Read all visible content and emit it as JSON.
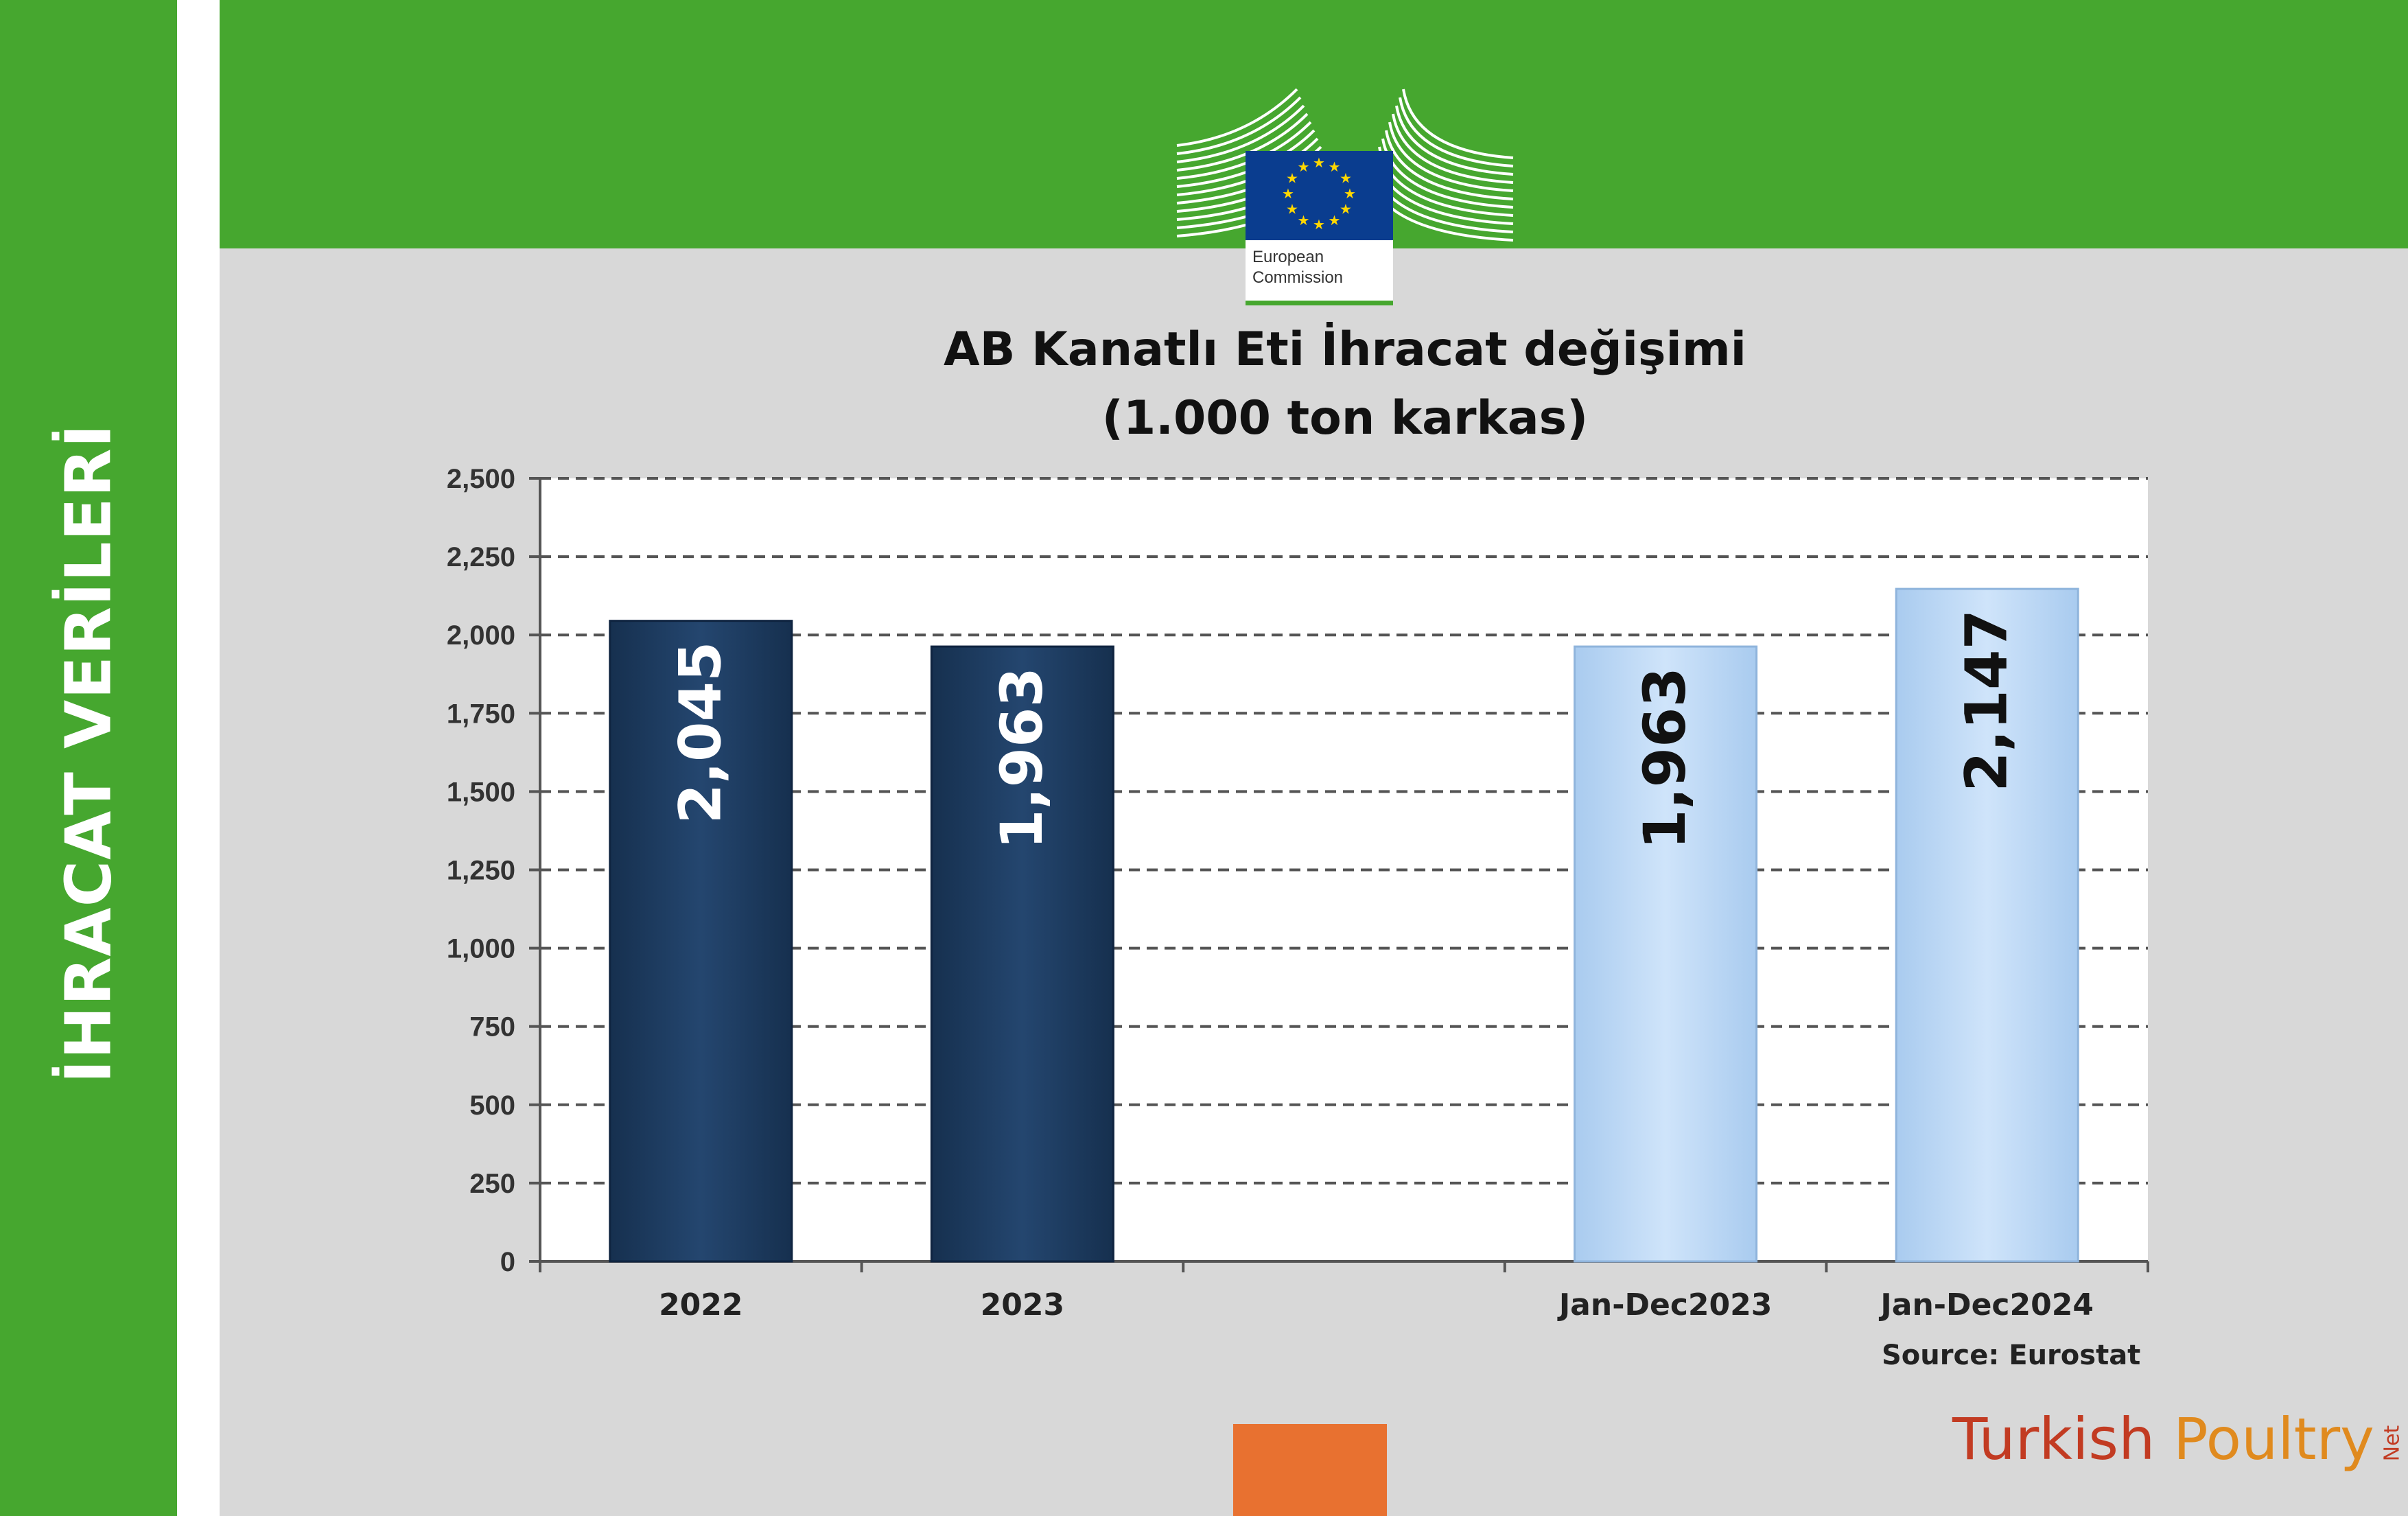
{
  "sidebar": {
    "title": "İHRACAT VERİLERİ"
  },
  "logo": {
    "org_line1": "European",
    "org_line2": "Commission"
  },
  "colors": {
    "green": "#46a72f",
    "content_bg": "#d8d8d8",
    "bar_dark": "#1f3d66",
    "bar_light": "#b8d6f5",
    "orange": "#e87130"
  },
  "chart_data": {
    "type": "bar",
    "title": "AB Kanatlı Eti İhracat değişimi",
    "subtitle": "(1.000 ton karkas)",
    "categories": [
      "2022",
      "2023",
      "",
      "Jan-Dec2023",
      "Jan-Dec2024"
    ],
    "values": [
      2045,
      1963,
      null,
      1963,
      2147
    ],
    "data_labels": [
      "2,045",
      "1,963",
      "",
      "1,963",
      "2,147"
    ],
    "bar_styles": [
      "dark",
      "dark",
      "none",
      "light",
      "light"
    ],
    "yticks": [
      "0",
      "250",
      "500",
      "750",
      "1,000",
      "1,250",
      "1,500",
      "1,750",
      "2,000",
      "2,250",
      "2,500"
    ],
    "ylim": [
      0,
      2500
    ],
    "ystep": 250,
    "grid": true,
    "xlabel": "",
    "ylabel": "",
    "source": "Source: Eurostat"
  },
  "brand": {
    "part1": "Turkish ",
    "part2": "Poultry",
    "suffix": "Net"
  }
}
